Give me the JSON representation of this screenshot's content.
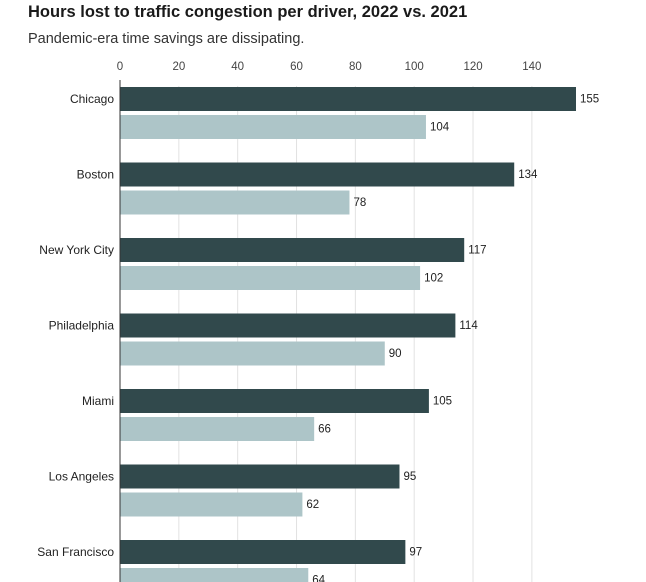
{
  "chart_data": {
    "type": "bar",
    "orientation": "horizontal",
    "title": "Hours lost to traffic congestion per driver, 2022 vs. 2021",
    "subtitle": "Pandemic-era time savings are dissipating.",
    "categories": [
      "Chicago",
      "Boston",
      "New York City",
      "Philadelphia",
      "Miami",
      "Los Angeles",
      "San Francisco"
    ],
    "series": [
      {
        "key": "2022",
        "color": "#31494c",
        "values": [
          155,
          134,
          117,
          114,
          105,
          95,
          97
        ]
      },
      {
        "key": "2021",
        "color": "#adc5c8",
        "values": [
          104,
          78,
          102,
          90,
          66,
          62,
          64
        ]
      }
    ],
    "xlim": [
      0,
      155
    ],
    "xticks": [
      0,
      20,
      40,
      60,
      80,
      100,
      120,
      140
    ],
    "grid": true
  }
}
